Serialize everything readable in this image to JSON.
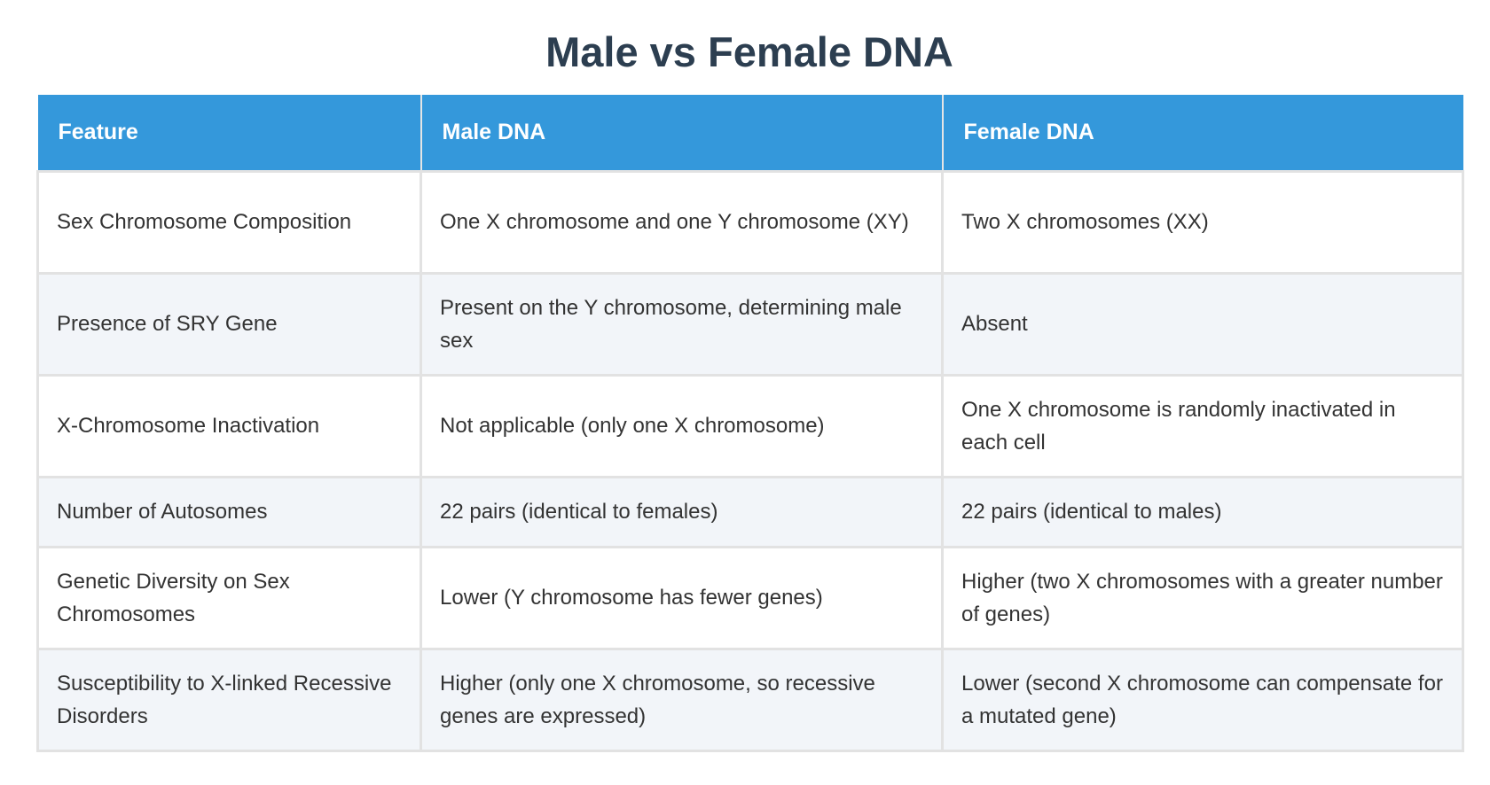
{
  "title": "Male vs Female DNA",
  "headers": [
    "Feature",
    "Male DNA",
    "Female DNA"
  ],
  "rows": [
    [
      "Sex Chromosome Composition",
      "One X chromosome and one Y chromosome (XY)",
      "Two X chromosomes (XX)"
    ],
    [
      "Presence of SRY Gene",
      "Present on the Y chromosome, determining male sex",
      "Absent"
    ],
    [
      "X-Chromosome Inactivation",
      "Not applicable (only one X chromosome)",
      "One X chromosome is randomly inactivated in each cell"
    ],
    [
      "Number of Autosomes",
      "22 pairs (identical to females)",
      "22 pairs (identical to males)"
    ],
    [
      "Genetic Diversity on Sex Chromosomes",
      "Lower (Y chromosome has fewer genes)",
      "Higher (two X chromosomes with a greater number of genes)"
    ],
    [
      "Susceptibility to X-linked Recessive Disorders",
      "Higher (only one X chromosome, so recessive genes are expressed)",
      "Lower (second X chromosome can compensate for a mutated gene)"
    ]
  ],
  "colors": {
    "header_bg": "#3498db",
    "title": "#2c3e50",
    "row_alt": "#f2f5f9"
  }
}
